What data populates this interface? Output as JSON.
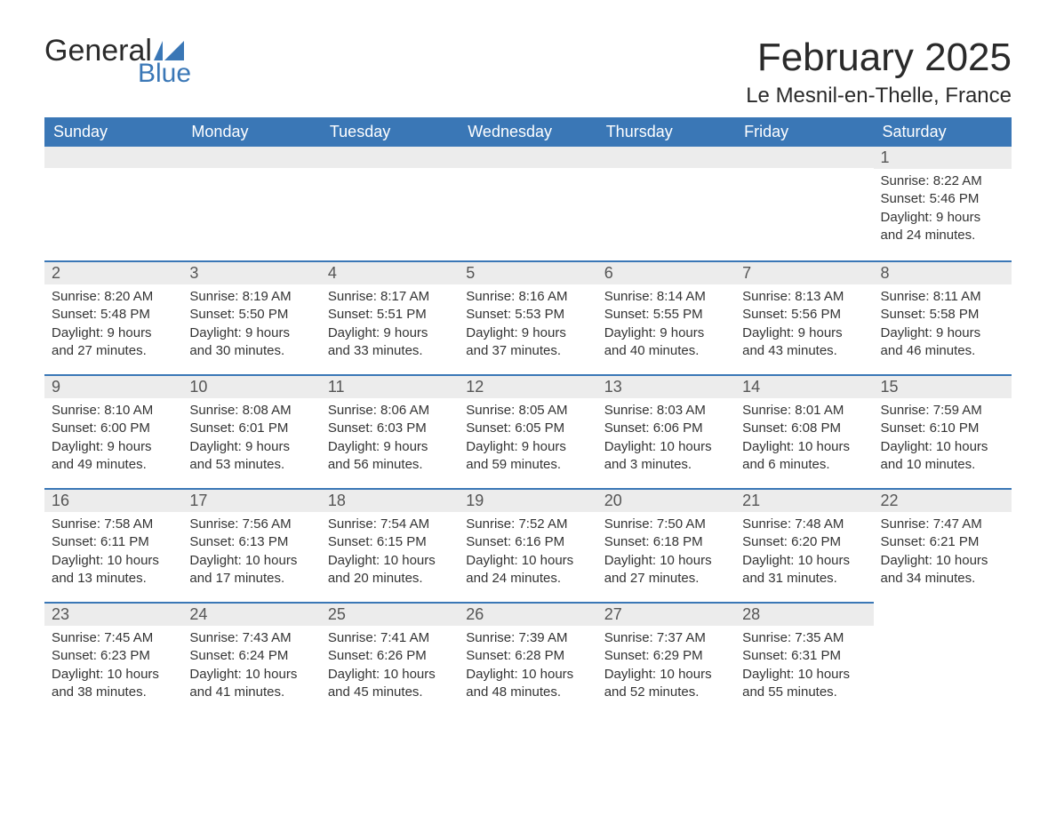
{
  "logo": {
    "word1": "General",
    "word2": "Blue"
  },
  "title": "February 2025",
  "location": "Le Mesnil-en-Thelle, France",
  "colors": {
    "header_bg": "#3a77b6",
    "header_text": "#ffffff",
    "daynum_bg": "#ececec",
    "border": "#3a77b6",
    "text": "#333333"
  },
  "day_headers": [
    "Sunday",
    "Monday",
    "Tuesday",
    "Wednesday",
    "Thursday",
    "Friday",
    "Saturday"
  ],
  "weeks": [
    [
      {
        "blank": true,
        "topband": true
      },
      {
        "blank": true,
        "topband": true
      },
      {
        "blank": true,
        "topband": true
      },
      {
        "blank": true,
        "topband": true
      },
      {
        "blank": true,
        "topband": true
      },
      {
        "blank": true,
        "topband": true
      },
      {
        "n": "1",
        "sr": "Sunrise: 8:22 AM",
        "ss": "Sunset: 5:46 PM",
        "dl1": "Daylight: 9 hours",
        "dl2": "and 24 minutes."
      }
    ],
    [
      {
        "n": "2",
        "sr": "Sunrise: 8:20 AM",
        "ss": "Sunset: 5:48 PM",
        "dl1": "Daylight: 9 hours",
        "dl2": "and 27 minutes."
      },
      {
        "n": "3",
        "sr": "Sunrise: 8:19 AM",
        "ss": "Sunset: 5:50 PM",
        "dl1": "Daylight: 9 hours",
        "dl2": "and 30 minutes."
      },
      {
        "n": "4",
        "sr": "Sunrise: 8:17 AM",
        "ss": "Sunset: 5:51 PM",
        "dl1": "Daylight: 9 hours",
        "dl2": "and 33 minutes."
      },
      {
        "n": "5",
        "sr": "Sunrise: 8:16 AM",
        "ss": "Sunset: 5:53 PM",
        "dl1": "Daylight: 9 hours",
        "dl2": "and 37 minutes."
      },
      {
        "n": "6",
        "sr": "Sunrise: 8:14 AM",
        "ss": "Sunset: 5:55 PM",
        "dl1": "Daylight: 9 hours",
        "dl2": "and 40 minutes."
      },
      {
        "n": "7",
        "sr": "Sunrise: 8:13 AM",
        "ss": "Sunset: 5:56 PM",
        "dl1": "Daylight: 9 hours",
        "dl2": "and 43 minutes."
      },
      {
        "n": "8",
        "sr": "Sunrise: 8:11 AM",
        "ss": "Sunset: 5:58 PM",
        "dl1": "Daylight: 9 hours",
        "dl2": "and 46 minutes."
      }
    ],
    [
      {
        "n": "9",
        "sr": "Sunrise: 8:10 AM",
        "ss": "Sunset: 6:00 PM",
        "dl1": "Daylight: 9 hours",
        "dl2": "and 49 minutes."
      },
      {
        "n": "10",
        "sr": "Sunrise: 8:08 AM",
        "ss": "Sunset: 6:01 PM",
        "dl1": "Daylight: 9 hours",
        "dl2": "and 53 minutes."
      },
      {
        "n": "11",
        "sr": "Sunrise: 8:06 AM",
        "ss": "Sunset: 6:03 PM",
        "dl1": "Daylight: 9 hours",
        "dl2": "and 56 minutes."
      },
      {
        "n": "12",
        "sr": "Sunrise: 8:05 AM",
        "ss": "Sunset: 6:05 PM",
        "dl1": "Daylight: 9 hours",
        "dl2": "and 59 minutes."
      },
      {
        "n": "13",
        "sr": "Sunrise: 8:03 AM",
        "ss": "Sunset: 6:06 PM",
        "dl1": "Daylight: 10 hours",
        "dl2": "and 3 minutes."
      },
      {
        "n": "14",
        "sr": "Sunrise: 8:01 AM",
        "ss": "Sunset: 6:08 PM",
        "dl1": "Daylight: 10 hours",
        "dl2": "and 6 minutes."
      },
      {
        "n": "15",
        "sr": "Sunrise: 7:59 AM",
        "ss": "Sunset: 6:10 PM",
        "dl1": "Daylight: 10 hours",
        "dl2": "and 10 minutes."
      }
    ],
    [
      {
        "n": "16",
        "sr": "Sunrise: 7:58 AM",
        "ss": "Sunset: 6:11 PM",
        "dl1": "Daylight: 10 hours",
        "dl2": "and 13 minutes."
      },
      {
        "n": "17",
        "sr": "Sunrise: 7:56 AM",
        "ss": "Sunset: 6:13 PM",
        "dl1": "Daylight: 10 hours",
        "dl2": "and 17 minutes."
      },
      {
        "n": "18",
        "sr": "Sunrise: 7:54 AM",
        "ss": "Sunset: 6:15 PM",
        "dl1": "Daylight: 10 hours",
        "dl2": "and 20 minutes."
      },
      {
        "n": "19",
        "sr": "Sunrise: 7:52 AM",
        "ss": "Sunset: 6:16 PM",
        "dl1": "Daylight: 10 hours",
        "dl2": "and 24 minutes."
      },
      {
        "n": "20",
        "sr": "Sunrise: 7:50 AM",
        "ss": "Sunset: 6:18 PM",
        "dl1": "Daylight: 10 hours",
        "dl2": "and 27 minutes."
      },
      {
        "n": "21",
        "sr": "Sunrise: 7:48 AM",
        "ss": "Sunset: 6:20 PM",
        "dl1": "Daylight: 10 hours",
        "dl2": "and 31 minutes."
      },
      {
        "n": "22",
        "sr": "Sunrise: 7:47 AM",
        "ss": "Sunset: 6:21 PM",
        "dl1": "Daylight: 10 hours",
        "dl2": "and 34 minutes."
      }
    ],
    [
      {
        "n": "23",
        "sr": "Sunrise: 7:45 AM",
        "ss": "Sunset: 6:23 PM",
        "dl1": "Daylight: 10 hours",
        "dl2": "and 38 minutes."
      },
      {
        "n": "24",
        "sr": "Sunrise: 7:43 AM",
        "ss": "Sunset: 6:24 PM",
        "dl1": "Daylight: 10 hours",
        "dl2": "and 41 minutes."
      },
      {
        "n": "25",
        "sr": "Sunrise: 7:41 AM",
        "ss": "Sunset: 6:26 PM",
        "dl1": "Daylight: 10 hours",
        "dl2": "and 45 minutes."
      },
      {
        "n": "26",
        "sr": "Sunrise: 7:39 AM",
        "ss": "Sunset: 6:28 PM",
        "dl1": "Daylight: 10 hours",
        "dl2": "and 48 minutes."
      },
      {
        "n": "27",
        "sr": "Sunrise: 7:37 AM",
        "ss": "Sunset: 6:29 PM",
        "dl1": "Daylight: 10 hours",
        "dl2": "and 52 minutes."
      },
      {
        "n": "28",
        "sr": "Sunrise: 7:35 AM",
        "ss": "Sunset: 6:31 PM",
        "dl1": "Daylight: 10 hours",
        "dl2": "and 55 minutes."
      },
      {
        "blank": true,
        "topband": false
      }
    ]
  ]
}
